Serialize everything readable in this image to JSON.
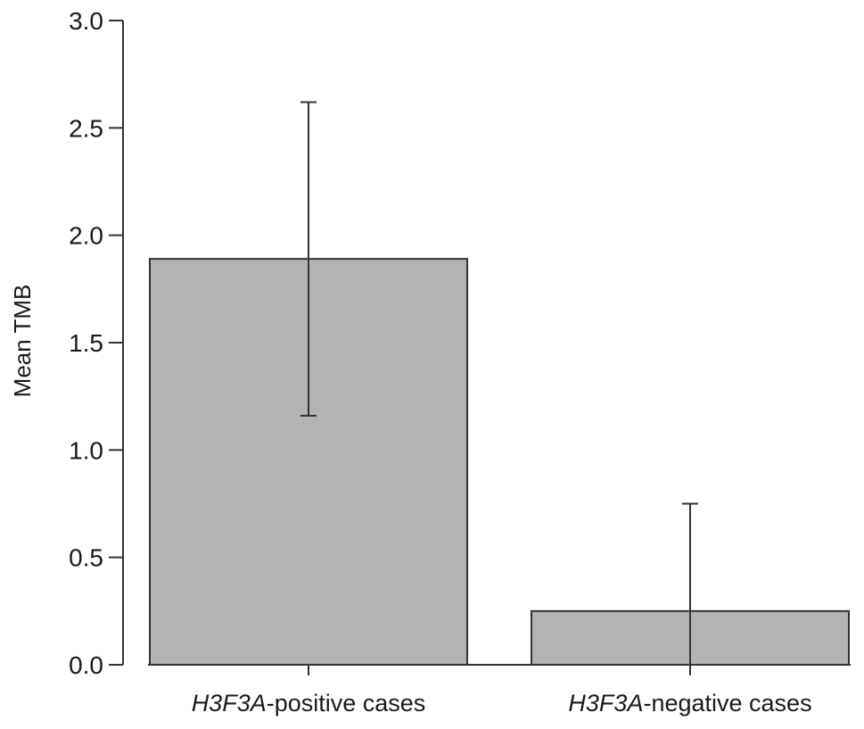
{
  "chart_data": {
    "type": "bar",
    "ylabel": "Mean TMB",
    "xlabel": "",
    "ylim": [
      0,
      3.0
    ],
    "yticks": [
      "0.0",
      "0.5",
      "1.0",
      "1.5",
      "2.0",
      "2.5",
      "3.0"
    ],
    "categories": [
      {
        "italic": "H3F3A",
        "rest": "-positive cases"
      },
      {
        "italic": "H3F3A",
        "rest": "-negative cases"
      }
    ],
    "values": [
      1.89,
      0.25
    ],
    "error_upper": [
      2.62,
      0.75
    ],
    "error_lower": [
      1.16,
      0.0
    ],
    "grid": false,
    "colors": {
      "bar_fill": "#b3b3b3",
      "bar_stroke": "#333333",
      "axis": "#333333"
    }
  }
}
